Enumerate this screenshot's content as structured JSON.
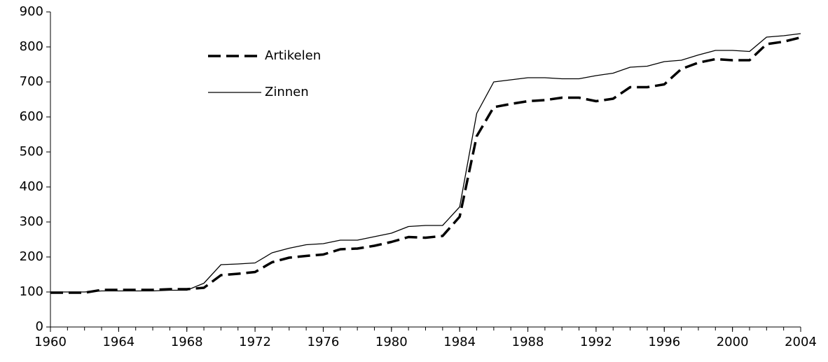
{
  "chart_data": {
    "type": "line",
    "x": [
      1960,
      1961,
      1962,
      1963,
      1964,
      1965,
      1966,
      1967,
      1968,
      1969,
      1970,
      1971,
      1972,
      1973,
      1974,
      1975,
      1976,
      1977,
      1978,
      1979,
      1980,
      1981,
      1982,
      1983,
      1984,
      1985,
      1986,
      1987,
      1988,
      1989,
      1990,
      1991,
      1992,
      1993,
      1994,
      1995,
      1996,
      1997,
      1998,
      1999,
      2000,
      2001,
      2002,
      2003,
      2004
    ],
    "series": [
      {
        "name": "Artikelen",
        "color": "#000000",
        "dashed": true,
        "values": [
          98,
          98,
          98,
          106,
          106,
          106,
          106,
          108,
          108,
          112,
          148,
          152,
          157,
          185,
          198,
          203,
          207,
          222,
          224,
          232,
          243,
          257,
          255,
          260,
          315,
          545,
          628,
          637,
          645,
          648,
          655,
          655,
          645,
          652,
          685,
          685,
          693,
          737,
          755,
          765,
          762,
          762,
          808,
          815,
          827
        ]
      },
      {
        "name": "Zinnen",
        "color": "#000000",
        "dashed": false,
        "values": [
          100,
          100,
          100,
          103,
          103,
          103,
          103,
          105,
          105,
          125,
          178,
          180,
          183,
          212,
          225,
          235,
          238,
          248,
          248,
          258,
          268,
          287,
          290,
          290,
          343,
          610,
          700,
          706,
          712,
          712,
          709,
          709,
          718,
          725,
          742,
          745,
          758,
          762,
          777,
          790,
          790,
          787,
          828,
          832,
          838
        ]
      }
    ],
    "xlim": [
      1960,
      2004
    ],
    "xticks": [
      1960,
      1964,
      1968,
      1972,
      1976,
      1980,
      1984,
      1988,
      1992,
      1996,
      2000,
      2004
    ],
    "ylim": [
      0,
      900
    ],
    "yticks": [
      0,
      100,
      200,
      300,
      400,
      500,
      600,
      700,
      800,
      900
    ],
    "grid": false
  }
}
